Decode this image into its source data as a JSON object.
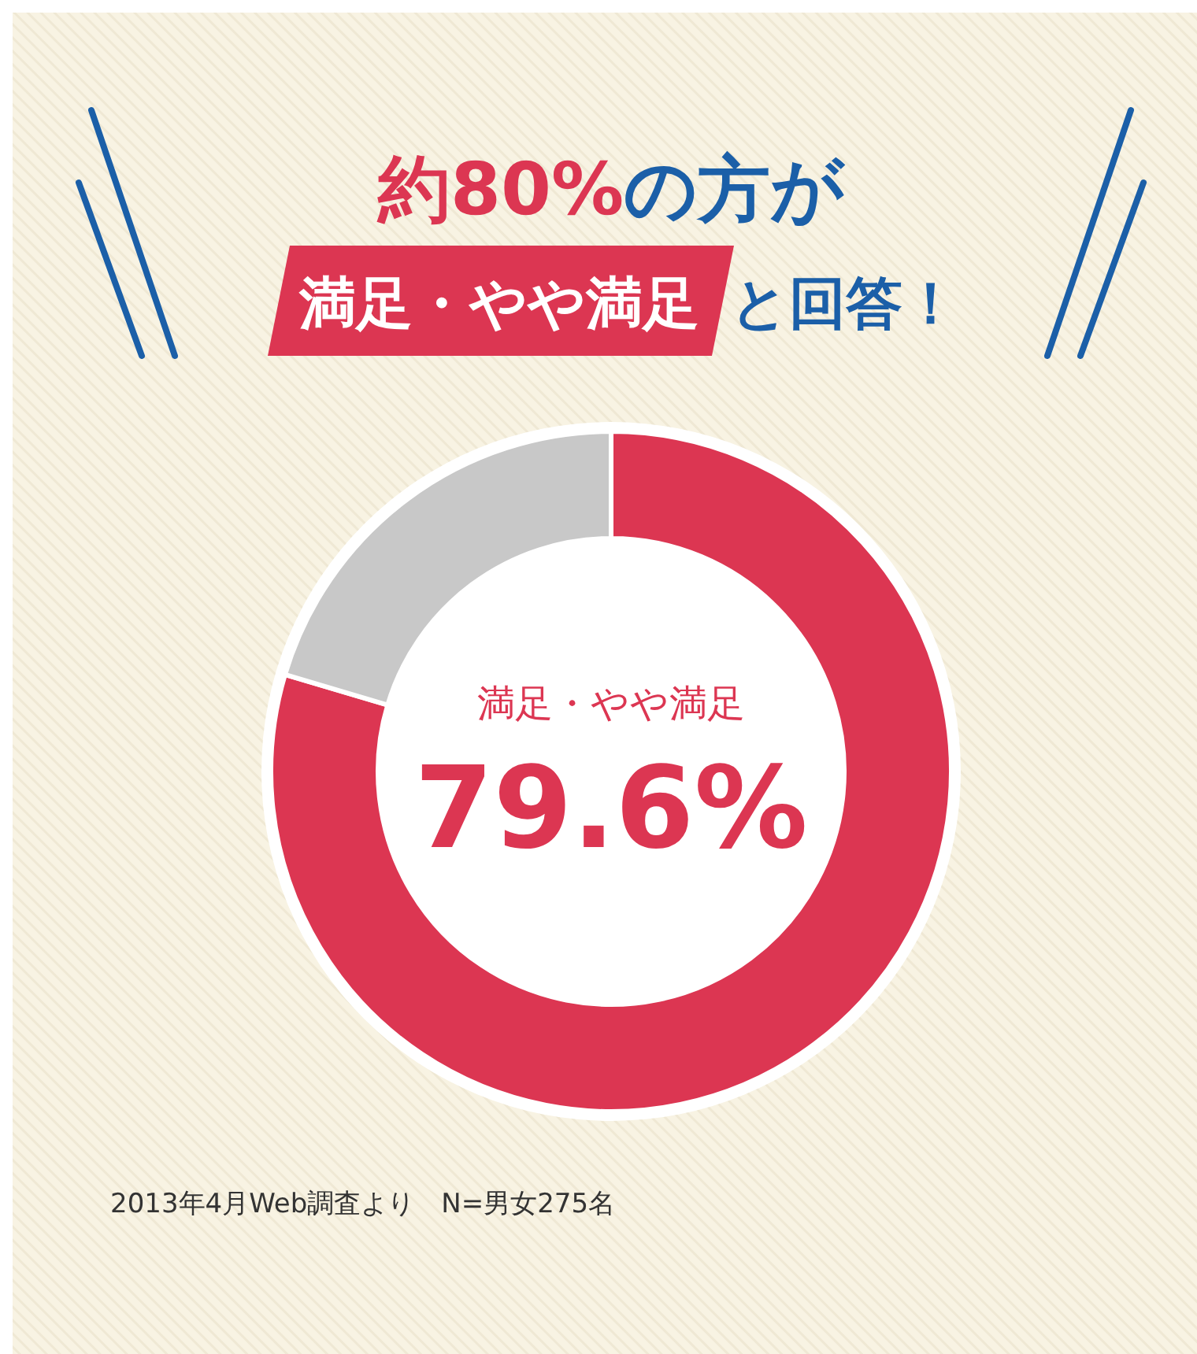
{
  "chart_data": {
    "type": "donut",
    "title": "約80%の方が",
    "subtitle": "満足・やや満足",
    "categories": [
      "満足・やや満足",
      null
    ],
    "values": [
      79.6,
      20.4
    ],
    "colors": [
      "#dc3652",
      "#c8c8c8"
    ],
    "value_labels": [
      "79.6%",
      null
    ],
    "legend": false,
    "annotations": [
      "と回答！",
      "2013年4月Web調査より　N=男女275名"
    ]
  }
}
